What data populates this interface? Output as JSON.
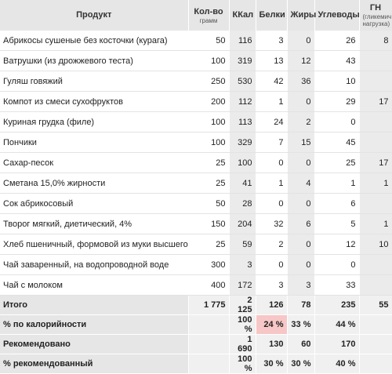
{
  "headers": {
    "product": "Продукт",
    "qty": "Кол-во",
    "qty_unit": "грамм",
    "kcal": "ККал",
    "protein": "Белки",
    "fat": "Жиры",
    "carbs": "Углеводы",
    "gl": "ГН",
    "gl_sub": "(гликемич. нагрузка)"
  },
  "rows": [
    {
      "name": "Абрикосы сушеные без косточки (курага)",
      "qty": "50",
      "kcal": "116",
      "protein": "3",
      "fat": "0",
      "carbs": "26",
      "gl": "8"
    },
    {
      "name": "Ватрушки (из дрожжевого теста)",
      "qty": "100",
      "kcal": "319",
      "protein": "13",
      "fat": "12",
      "carbs": "43",
      "gl": ""
    },
    {
      "name": "Гуляш говяжий",
      "qty": "250",
      "kcal": "530",
      "protein": "42",
      "fat": "36",
      "carbs": "10",
      "gl": ""
    },
    {
      "name": "Компот из смеси сухофруктов",
      "qty": "200",
      "kcal": "112",
      "protein": "1",
      "fat": "0",
      "carbs": "29",
      "gl": "17"
    },
    {
      "name": "Куриная грудка (филе)",
      "qty": "100",
      "kcal": "113",
      "protein": "24",
      "fat": "2",
      "carbs": "0",
      "gl": ""
    },
    {
      "name": "Пончики",
      "qty": "100",
      "kcal": "329",
      "protein": "7",
      "fat": "15",
      "carbs": "45",
      "gl": ""
    },
    {
      "name": "Сахар-песок",
      "qty": "25",
      "kcal": "100",
      "protein": "0",
      "fat": "0",
      "carbs": "25",
      "gl": "17"
    },
    {
      "name": "Сметана 15,0% жирности",
      "qty": "25",
      "kcal": "41",
      "protein": "1",
      "fat": "4",
      "carbs": "1",
      "gl": "1"
    },
    {
      "name": "Сок абрикосовый",
      "qty": "50",
      "kcal": "28",
      "protein": "0",
      "fat": "0",
      "carbs": "6",
      "gl": ""
    },
    {
      "name": "Творог мягкий, диетический, 4%",
      "qty": "150",
      "kcal": "204",
      "protein": "32",
      "fat": "6",
      "carbs": "5",
      "gl": "1"
    },
    {
      "name": "Хлеб пшеничный, формовой из муки высшего сорта",
      "qty": "25",
      "kcal": "59",
      "protein": "2",
      "fat": "0",
      "carbs": "12",
      "gl": "10"
    },
    {
      "name": "Чай заваренный, на водопроводной воде",
      "qty": "300",
      "kcal": "3",
      "protein": "0",
      "fat": "0",
      "carbs": "0",
      "gl": ""
    },
    {
      "name": "Чай с молоком",
      "qty": "400",
      "kcal": "172",
      "protein": "3",
      "fat": "3",
      "carbs": "33",
      "gl": ""
    }
  ],
  "total": {
    "label": "Итого",
    "qty": "1 775",
    "kcal": "2 125",
    "protein": "126",
    "fat": "78",
    "carbs": "235",
    "gl": "55"
  },
  "calorie_pct": {
    "label": "% по калорийности",
    "kcal": "100 %",
    "protein": "24 %",
    "fat": "33 %",
    "carbs": "44 %"
  },
  "recommended": {
    "label": "Рекомендовано",
    "kcal": "1 690",
    "protein": "130",
    "fat": "60",
    "carbs": "170"
  },
  "recommended_pct": {
    "label": "% рекомендованный",
    "kcal": "100 %",
    "protein": "30 %",
    "fat": "30 %",
    "carbs": "40 %"
  },
  "colors": {
    "header_bg": "#e6e6e6",
    "highlight": "#f7c6c6",
    "shade": "#ebebeb"
  }
}
